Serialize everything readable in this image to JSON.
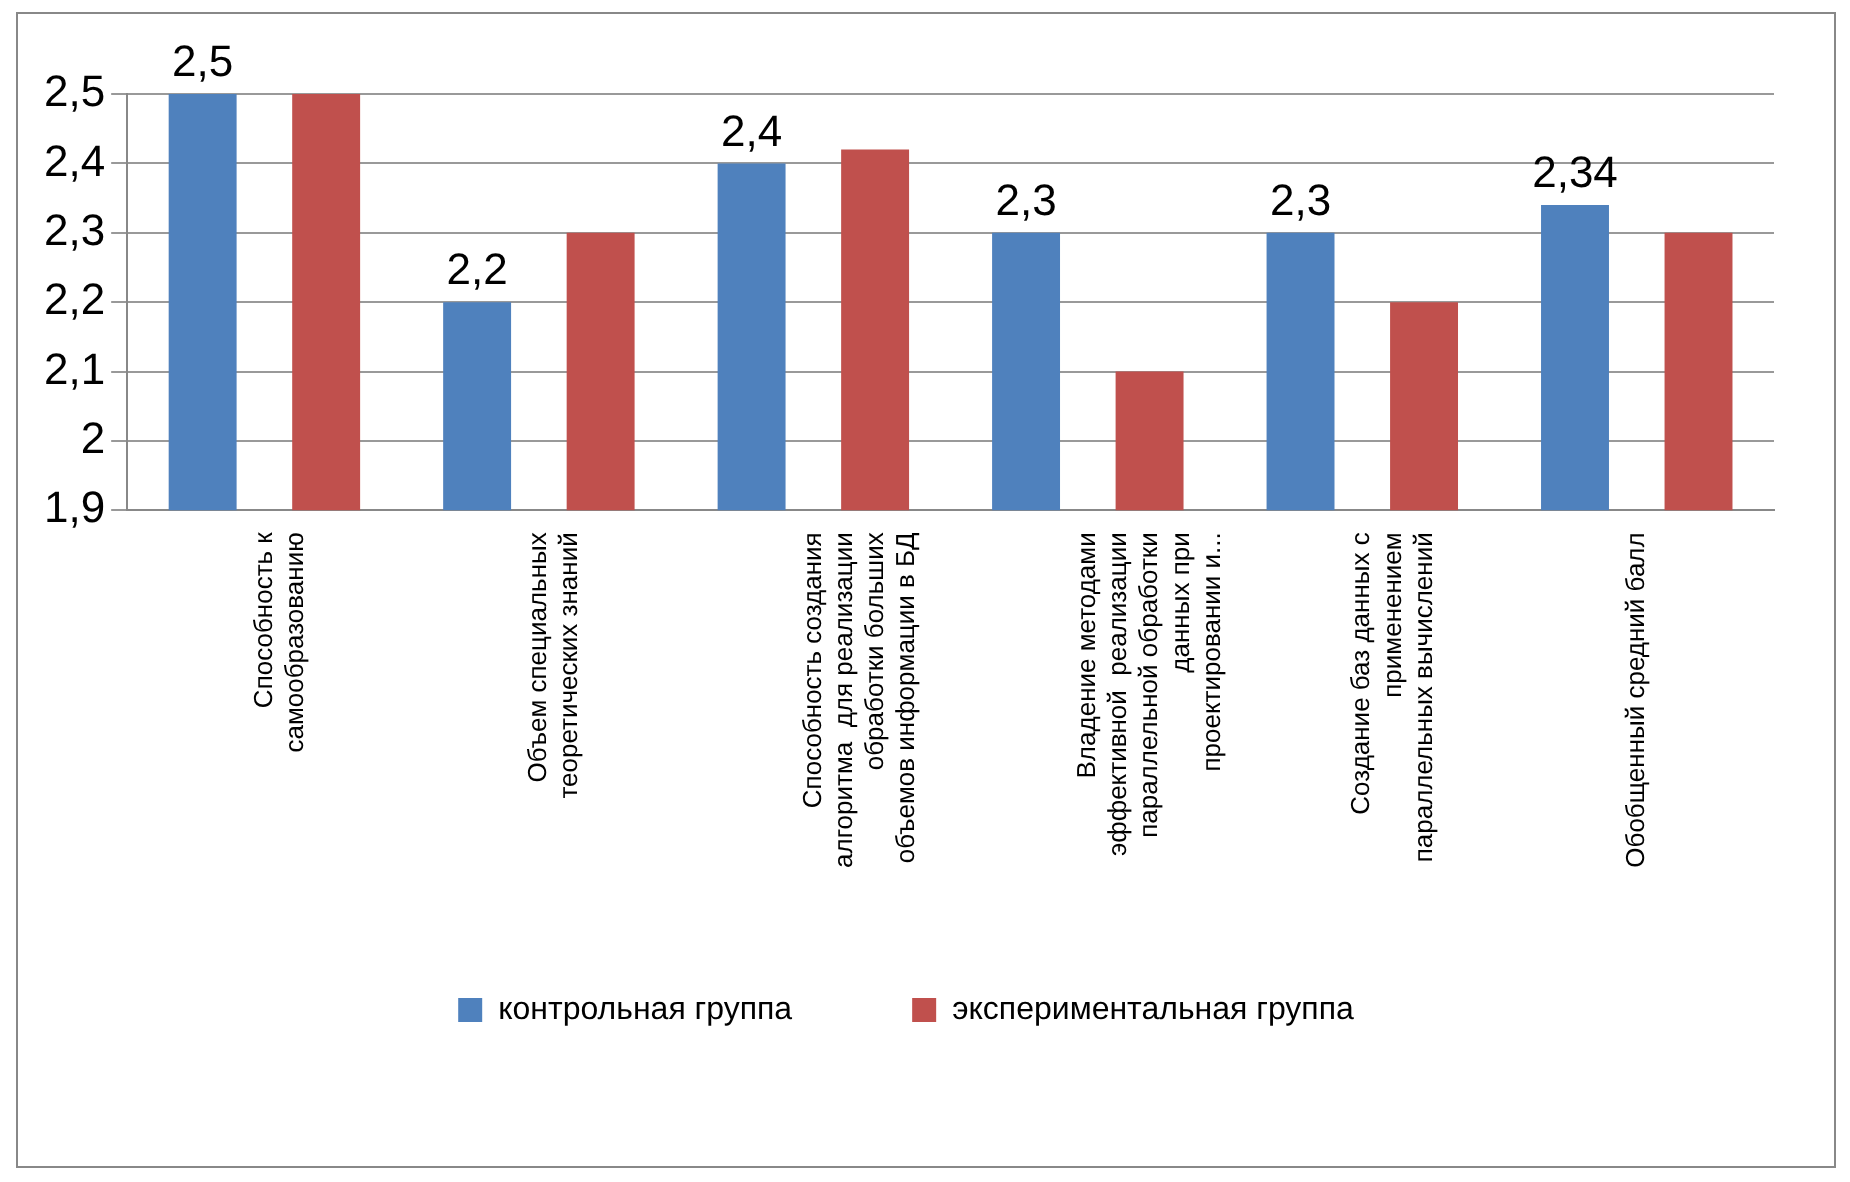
{
  "chart_data": {
    "type": "bar",
    "categories": [
      "Способность к\nсамообразованию",
      "Объем специальных\nтеоретических знаний",
      "Способность создания\nалгоритма  для реализации\nобработки больших\nобъемов информации в БД",
      "Владение методами\nэффективной  реализации\nпараллельной обработки\nданных при\nпроектировании и...",
      "Создание баз данных с\nприменением\nпараллельных вычислений",
      "Обобщенный средний балл"
    ],
    "series": [
      {
        "name": "контрольная группа",
        "color": "#4f81bd",
        "values": [
          2.5,
          2.2,
          2.4,
          2.3,
          2.3,
          2.34
        ],
        "value_labels": [
          "2,5",
          "2,2",
          "2,4",
          "2,3",
          "2,3",
          "2,34"
        ]
      },
      {
        "name": "экспериментальная группа",
        "color": "#c0504d",
        "values": [
          2.5,
          2.3,
          2.42,
          2.1,
          2.2,
          2.3
        ]
      }
    ],
    "ylim": [
      1.9,
      2.5
    ],
    "yticks": [
      {
        "value": 1.9,
        "label": "1,9"
      },
      {
        "value": 2,
        "label": "2"
      },
      {
        "value": 2.1,
        "label": "2,1"
      },
      {
        "value": 2.2,
        "label": "2,2"
      },
      {
        "value": 2.3,
        "label": "2,3"
      },
      {
        "value": 2.4,
        "label": "2,4"
      },
      {
        "value": 2.5,
        "label": "2,5"
      }
    ],
    "grid": "y",
    "legend": "bottom"
  }
}
